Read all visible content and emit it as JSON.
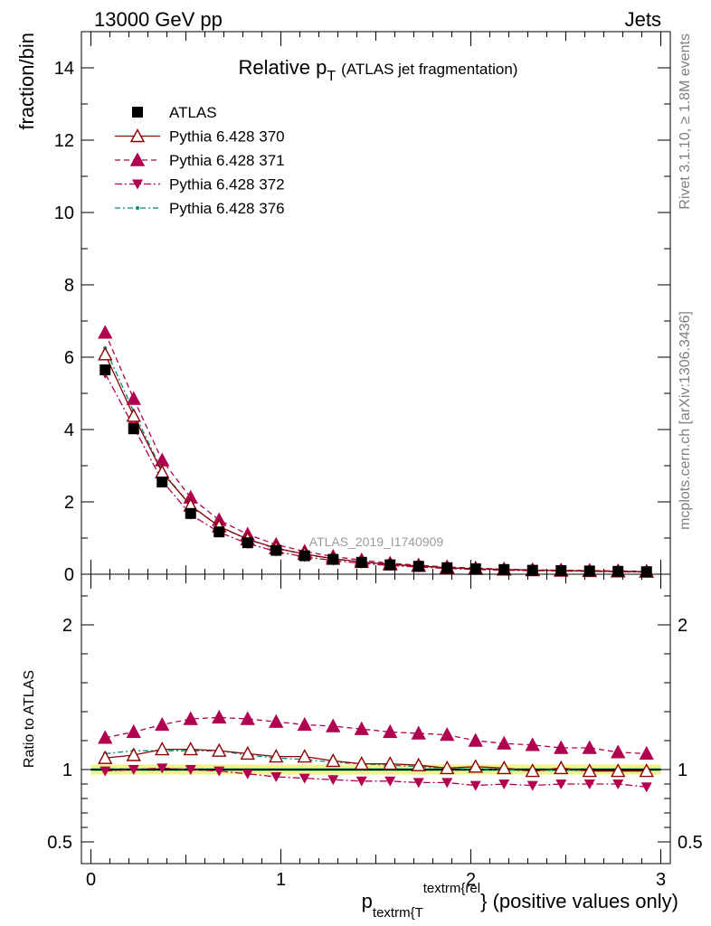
{
  "header": {
    "left": "13000 GeV pp",
    "right": "Jets"
  },
  "side_text": {
    "rivet": "Rivet 3.1.10, ≥ 1.8M events",
    "mcplots": "mcplots.cern.ch [arXiv:1306.3436]"
  },
  "analysis_id": "ATLAS_2019_I1740909",
  "colors": {
    "atlas": "#000000",
    "p370": "#8b0000",
    "p371": "#b0004f",
    "p372": "#b0004f",
    "p376": "#008b7a",
    "band_outer": "#f2f28c",
    "band_inner": "#8fe08f"
  },
  "chart_data": [
    {
      "type": "line",
      "panel": "main",
      "title": "Relative p",
      "title_sub": "T",
      "title_rest": "(ATLAS jet fragmentation)",
      "ylabel": "fraction/bin",
      "xlim": [
        -0.05,
        3.05
      ],
      "ylim": [
        0,
        15
      ],
      "y_ticks": [
        "0",
        "2",
        "4",
        "6",
        "8",
        "10",
        "12",
        "14"
      ],
      "x": [
        0.075,
        0.225,
        0.375,
        0.525,
        0.675,
        0.825,
        0.975,
        1.125,
        1.275,
        1.425,
        1.575,
        1.725,
        1.875,
        2.025,
        2.175,
        2.325,
        2.475,
        2.625,
        2.775,
        2.925
      ],
      "series": [
        {
          "name": "ATLAS",
          "marker": "square",
          "values": [
            5.65,
            4.02,
            2.55,
            1.68,
            1.17,
            0.87,
            0.66,
            0.51,
            0.41,
            0.33,
            0.26,
            0.22,
            0.18,
            0.15,
            0.13,
            0.11,
            0.1,
            0.09,
            0.08,
            0.07
          ]
        },
        {
          "name": "Pythia 6.428 370",
          "marker": "triangle-up-open",
          "values": [
            6.08,
            4.38,
            2.82,
            1.9,
            1.32,
            0.97,
            0.72,
            0.56,
            0.43,
            0.34,
            0.27,
            0.23,
            0.18,
            0.15,
            0.13,
            0.11,
            0.1,
            0.09,
            0.08,
            0.07
          ]
        },
        {
          "name": "Pythia 6.428 371",
          "marker": "triangle-up",
          "values": [
            6.68,
            4.85,
            3.15,
            2.12,
            1.5,
            1.1,
            0.82,
            0.63,
            0.49,
            0.39,
            0.3,
            0.25,
            0.2,
            0.17,
            0.14,
            0.12,
            0.11,
            0.1,
            0.09,
            0.08
          ]
        },
        {
          "name": "Pythia 6.428 372",
          "marker": "triangle-down",
          "values": [
            5.55,
            4.08,
            2.58,
            1.65,
            1.16,
            0.85,
            0.63,
            0.48,
            0.38,
            0.3,
            0.24,
            0.2,
            0.16,
            0.13,
            0.11,
            0.1,
            0.09,
            0.08,
            0.07,
            0.06
          ]
        },
        {
          "name": "Pythia 6.428 376",
          "marker": "dot",
          "values": [
            6.25,
            4.5,
            2.85,
            1.9,
            1.32,
            0.96,
            0.71,
            0.55,
            0.42,
            0.34,
            0.27,
            0.22,
            0.18,
            0.15,
            0.13,
            0.11,
            0.1,
            0.09,
            0.08,
            0.07
          ]
        }
      ]
    },
    {
      "type": "line",
      "panel": "ratio",
      "ylabel": "Ratio to ATLAS",
      "xlabel": "p",
      "xlabel_sub": "textrm{T",
      "xlabel_sup": "textrm{rel",
      "xlabel_rest": "} (positive values only)",
      "xlim": [
        -0.05,
        3.05
      ],
      "ylim": [
        0.35,
        2.35
      ],
      "y_ticks": [
        {
          "v": 0.5,
          "label": "0.5"
        },
        {
          "v": 1,
          "label": "1"
        },
        {
          "v": 2,
          "label": "2"
        }
      ],
      "x_ticks": [
        {
          "v": 0,
          "label": "0"
        },
        {
          "v": 1,
          "label": "1"
        },
        {
          "v": 2,
          "label": "2"
        },
        {
          "v": 3,
          "label": "3"
        }
      ],
      "x": [
        0.075,
        0.225,
        0.375,
        0.525,
        0.675,
        0.825,
        0.975,
        1.125,
        1.275,
        1.425,
        1.575,
        1.725,
        1.875,
        2.025,
        2.175,
        2.325,
        2.475,
        2.625,
        2.775,
        2.925
      ],
      "band_outer": [
        0.035,
        0.035,
        0.035,
        0.035,
        0.035,
        0.035,
        0.035,
        0.035,
        0.035,
        0.035,
        0.035,
        0.035,
        0.035,
        0.035,
        0.035,
        0.035,
        0.035,
        0.035,
        0.035,
        0.035
      ],
      "band_inner": [
        0.012,
        0.012,
        0.012,
        0.012,
        0.012,
        0.012,
        0.012,
        0.012,
        0.012,
        0.012,
        0.012,
        0.012,
        0.012,
        0.012,
        0.012,
        0.012,
        0.012,
        0.012,
        0.012,
        0.012
      ],
      "series": [
        {
          "name": "Pythia 6.428 370",
          "values": [
            1.08,
            1.1,
            1.14,
            1.14,
            1.13,
            1.11,
            1.09,
            1.09,
            1.06,
            1.04,
            1.04,
            1.03,
            1.01,
            1.02,
            1.01,
            0.99,
            1.01,
            0.99,
            0.99,
            0.99
          ]
        },
        {
          "name": "Pythia 6.428 371",
          "values": [
            1.22,
            1.26,
            1.31,
            1.35,
            1.36,
            1.35,
            1.33,
            1.31,
            1.3,
            1.28,
            1.26,
            1.25,
            1.24,
            1.2,
            1.18,
            1.17,
            1.15,
            1.15,
            1.12,
            1.11
          ]
        },
        {
          "name": "Pythia 6.428 372",
          "values": [
            0.99,
            1.0,
            1.01,
            1.0,
            0.99,
            0.97,
            0.95,
            0.94,
            0.93,
            0.92,
            0.92,
            0.91,
            0.91,
            0.89,
            0.9,
            0.89,
            0.9,
            0.9,
            0.9,
            0.88
          ]
        },
        {
          "name": "Pythia 6.428 376",
          "values": [
            1.11,
            1.13,
            1.13,
            1.13,
            1.13,
            1.1,
            1.08,
            1.07,
            1.05,
            1.04,
            1.03,
            1.02,
            1.01,
            1.0,
            1.0,
            0.99,
            1.0,
            0.99,
            0.99,
            0.99
          ]
        }
      ]
    }
  ]
}
